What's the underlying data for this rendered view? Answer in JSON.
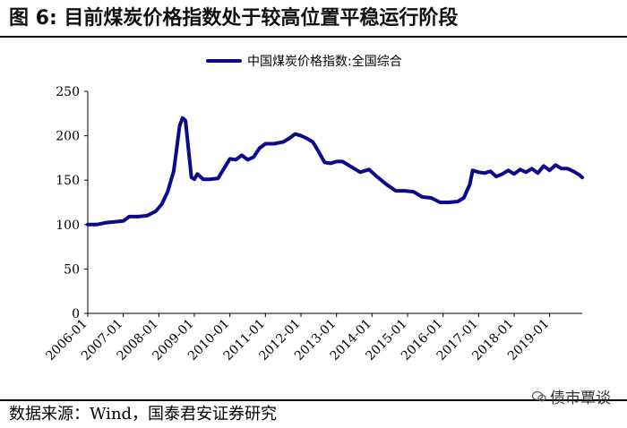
{
  "figure": {
    "title": "图 6:  目前煤炭价格指数处于较高位置平稳运行阶段",
    "source": "数据来源：Wind，国泰君安证券研究",
    "watermark": "债市覃谈"
  },
  "chart_data": {
    "type": "line",
    "title": "",
    "xlabel": "",
    "ylabel": "",
    "ylim": [
      0,
      250
    ],
    "yticks": [
      0,
      50,
      100,
      150,
      200,
      250
    ],
    "xticks": [
      "2006-01",
      "2007-01",
      "2008-01",
      "2009-01",
      "2010-01",
      "2011-01",
      "2012-01",
      "2013-01",
      "2014-01",
      "2015-01",
      "2016-01",
      "2017-01",
      "2018-01",
      "2019-01"
    ],
    "xlim": [
      "2006-01",
      "2019-12"
    ],
    "legend_position": "top-center",
    "grid": false,
    "series": [
      {
        "name": "中国煤炭价格指数:全国综合",
        "color": "#0a0a8c",
        "points": [
          [
            "2006-01",
            100
          ],
          [
            "2006-04",
            100
          ],
          [
            "2006-07",
            102
          ],
          [
            "2006-10",
            103
          ],
          [
            "2007-01",
            104
          ],
          [
            "2007-03",
            109
          ],
          [
            "2007-06",
            109
          ],
          [
            "2007-09",
            110
          ],
          [
            "2007-12",
            115
          ],
          [
            "2008-02",
            123
          ],
          [
            "2008-04",
            137
          ],
          [
            "2008-06",
            160
          ],
          [
            "2008-07",
            185
          ],
          [
            "2008-08",
            211
          ],
          [
            "2008-09",
            220
          ],
          [
            "2008-10",
            217
          ],
          [
            "2008-11",
            185
          ],
          [
            "2008-12",
            153
          ],
          [
            "2009-01",
            151
          ],
          [
            "2009-02",
            157
          ],
          [
            "2009-04",
            151
          ],
          [
            "2009-06",
            151
          ],
          [
            "2009-09",
            152
          ],
          [
            "2009-11",
            163
          ],
          [
            "2010-01",
            174
          ],
          [
            "2010-03",
            173
          ],
          [
            "2010-05",
            178
          ],
          [
            "2010-07",
            173
          ],
          [
            "2010-09",
            176
          ],
          [
            "2010-11",
            186
          ],
          [
            "2011-01",
            191
          ],
          [
            "2011-04",
            191
          ],
          [
            "2011-07",
            193
          ],
          [
            "2011-09",
            197
          ],
          [
            "2011-11",
            202
          ],
          [
            "2012-01",
            200
          ],
          [
            "2012-03",
            197
          ],
          [
            "2012-05",
            193
          ],
          [
            "2012-07",
            182
          ],
          [
            "2012-09",
            170
          ],
          [
            "2012-11",
            169
          ],
          [
            "2013-01",
            171
          ],
          [
            "2013-03",
            171
          ],
          [
            "2013-06",
            165
          ],
          [
            "2013-09",
            159
          ],
          [
            "2013-12",
            162
          ],
          [
            "2014-03",
            153
          ],
          [
            "2014-06",
            145
          ],
          [
            "2014-09",
            138
          ],
          [
            "2014-12",
            138
          ],
          [
            "2015-03",
            137
          ],
          [
            "2015-06",
            131
          ],
          [
            "2015-09",
            130
          ],
          [
            "2015-12",
            125
          ],
          [
            "2016-03",
            125
          ],
          [
            "2016-06",
            126
          ],
          [
            "2016-08",
            130
          ],
          [
            "2016-10",
            145
          ],
          [
            "2016-11",
            161
          ],
          [
            "2017-01",
            159
          ],
          [
            "2017-03",
            158
          ],
          [
            "2017-05",
            160
          ],
          [
            "2017-07",
            154
          ],
          [
            "2017-09",
            157
          ],
          [
            "2017-11",
            161
          ],
          [
            "2018-01",
            157
          ],
          [
            "2018-03",
            162
          ],
          [
            "2018-05",
            159
          ],
          [
            "2018-07",
            163
          ],
          [
            "2018-09",
            158
          ],
          [
            "2018-11",
            166
          ],
          [
            "2019-01",
            161
          ],
          [
            "2019-03",
            167
          ],
          [
            "2019-05",
            163
          ],
          [
            "2019-07",
            163
          ],
          [
            "2019-09",
            160
          ],
          [
            "2019-11",
            156
          ],
          [
            "2019-12",
            153
          ]
        ]
      }
    ]
  }
}
